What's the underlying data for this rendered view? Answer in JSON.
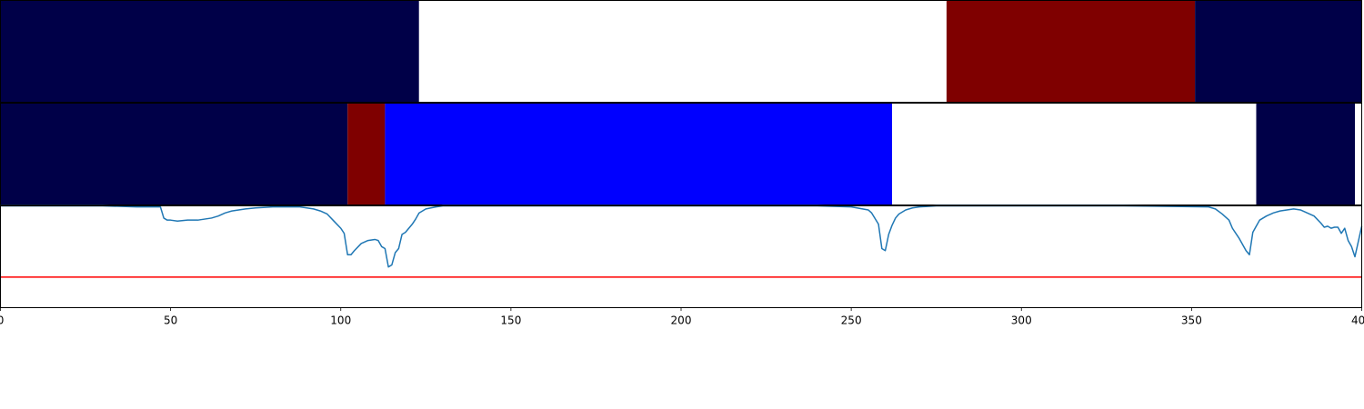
{
  "chart_data": [
    {
      "type": "heatmap",
      "segments": [
        {
          "start": 0,
          "end": 123,
          "color": "#000048"
        },
        {
          "start": 123,
          "end": 278,
          "color": "#ffffff"
        },
        {
          "start": 278,
          "end": 351,
          "color": "#7f0000"
        },
        {
          "start": 351,
          "end": 401,
          "color": "#000048"
        }
      ]
    },
    {
      "type": "heatmap",
      "segments": [
        {
          "start": 0,
          "end": 102,
          "color": "#000048"
        },
        {
          "start": 102,
          "end": 113,
          "color": "#7f0000"
        },
        {
          "start": 113,
          "end": 262,
          "color": "#0000ff"
        },
        {
          "start": 262,
          "end": 369,
          "color": "#ffffff"
        },
        {
          "start": 369,
          "end": 398,
          "color": "#000048"
        },
        {
          "start": 398,
          "end": 401,
          "color": "#ffffff"
        }
      ]
    },
    {
      "type": "line",
      "xlim": [
        0,
        400
      ],
      "ylim": [
        0,
        1
      ],
      "threshold": 0.3,
      "threshold_color": "#ff0000",
      "line_color": "#1f77b4",
      "x_ticks": [
        0,
        50,
        100,
        150,
        200,
        250,
        300,
        350,
        400
      ],
      "x_tick_labels": [
        "0",
        "50",
        "100",
        "150",
        "200",
        "250",
        "300",
        "350",
        "400"
      ],
      "series": [
        {
          "x": [
            0,
            10,
            20,
            30,
            40,
            47,
            48,
            49,
            50,
            52,
            55,
            58,
            60,
            62,
            64,
            66,
            68,
            70,
            72,
            75,
            80,
            85,
            88,
            90,
            92,
            94,
            96,
            98,
            100,
            101,
            102,
            103,
            104,
            106,
            108,
            110,
            111,
            112,
            113,
            114,
            115,
            116,
            117,
            118,
            119,
            120,
            121,
            122,
            123,
            125,
            128,
            130,
            135,
            140,
            150,
            160,
            170,
            180,
            200,
            220,
            240,
            250,
            255,
            256,
            258,
            259,
            260,
            261,
            262,
            263,
            264,
            266,
            268,
            270,
            275,
            280,
            300,
            330,
            355,
            357,
            359,
            361,
            362,
            364,
            366,
            367,
            368,
            369,
            370,
            372,
            374,
            376,
            378,
            380,
            382,
            384,
            386,
            388,
            389,
            390,
            391,
            392,
            393,
            394,
            395,
            396,
            397,
            398,
            400
          ],
          "y": [
            1.0,
            1.0,
            1.0,
            1.0,
            0.99,
            0.99,
            0.88,
            0.86,
            0.86,
            0.85,
            0.86,
            0.86,
            0.87,
            0.88,
            0.9,
            0.93,
            0.95,
            0.96,
            0.97,
            0.98,
            0.99,
            0.99,
            0.99,
            0.98,
            0.97,
            0.95,
            0.92,
            0.85,
            0.78,
            0.73,
            0.52,
            0.52,
            0.56,
            0.63,
            0.66,
            0.67,
            0.66,
            0.6,
            0.58,
            0.4,
            0.42,
            0.54,
            0.58,
            0.72,
            0.74,
            0.78,
            0.82,
            0.87,
            0.93,
            0.97,
            0.99,
            1.0,
            1.0,
            1.0,
            1.0,
            1.0,
            1.0,
            1.0,
            1.0,
            1.0,
            1.0,
            0.99,
            0.96,
            0.93,
            0.82,
            0.58,
            0.56,
            0.72,
            0.81,
            0.88,
            0.92,
            0.96,
            0.98,
            0.99,
            1.0,
            1.0,
            1.0,
            1.0,
            0.99,
            0.97,
            0.92,
            0.86,
            0.78,
            0.68,
            0.56,
            0.52,
            0.74,
            0.8,
            0.86,
            0.9,
            0.93,
            0.95,
            0.96,
            0.97,
            0.96,
            0.93,
            0.9,
            0.83,
            0.79,
            0.8,
            0.78,
            0.79,
            0.79,
            0.73,
            0.78,
            0.66,
            0.6,
            0.5,
            0.8
          ]
        }
      ]
    }
  ]
}
